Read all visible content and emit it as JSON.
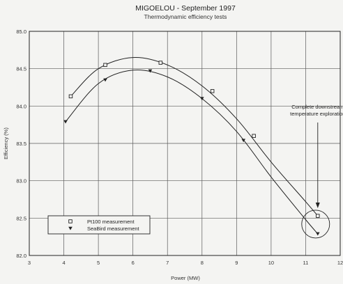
{
  "chart_data": {
    "type": "line",
    "title": "MIGOELOU - September 1997",
    "subtitle": "Thermodynamic efficiency tests",
    "xlabel": "Power (MW)",
    "ylabel": "Efficiency (%)",
    "xlim": [
      3,
      12
    ],
    "ylim": [
      82.0,
      85.0
    ],
    "xticks": [
      "3",
      "4",
      "5",
      "6",
      "7",
      "8",
      "9",
      "10",
      "11",
      "12"
    ],
    "yticks": [
      "82.0",
      "82.5",
      "83.0",
      "83.5",
      "84.0",
      "84.5",
      "85.0"
    ],
    "grid": true,
    "legend_position": "bottom-left",
    "series": [
      {
        "name": "Pt100 measurement",
        "marker": "square",
        "points": [
          [
            4.2,
            84.13
          ],
          [
            5.2,
            84.55
          ],
          [
            6.8,
            84.58
          ],
          [
            8.3,
            84.2
          ],
          [
            9.5,
            83.6
          ],
          [
            11.35,
            82.53
          ]
        ],
        "curve": [
          [
            4.2,
            84.13
          ],
          [
            5.0,
            84.5
          ],
          [
            6.0,
            84.65
          ],
          [
            7.0,
            84.55
          ],
          [
            8.0,
            84.27
          ],
          [
            9.0,
            83.83
          ],
          [
            10.0,
            83.25
          ],
          [
            11.0,
            82.72
          ],
          [
            11.35,
            82.53
          ]
        ]
      },
      {
        "name": "SeaBird measurement",
        "marker": "triangle-down",
        "points": [
          [
            4.05,
            83.79
          ],
          [
            5.2,
            84.35
          ],
          [
            6.5,
            84.47
          ],
          [
            8.0,
            84.1
          ],
          [
            9.2,
            83.54
          ],
          [
            11.35,
            82.29
          ]
        ],
        "curve": [
          [
            4.05,
            83.79
          ],
          [
            5.0,
            84.3
          ],
          [
            6.0,
            84.48
          ],
          [
            7.0,
            84.39
          ],
          [
            8.0,
            84.1
          ],
          [
            9.0,
            83.66
          ],
          [
            10.0,
            83.05
          ],
          [
            11.0,
            82.48
          ],
          [
            11.35,
            82.29
          ]
        ]
      }
    ],
    "annotation": {
      "lines": [
        "Complete downstream",
        "temperature exploration"
      ],
      "at": [
        11.35,
        82.42
      ]
    }
  }
}
